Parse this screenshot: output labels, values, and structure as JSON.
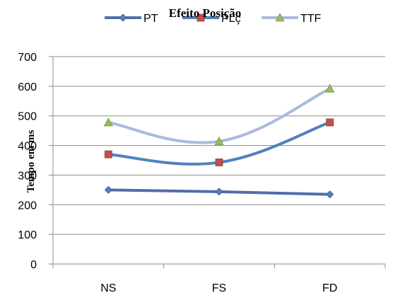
{
  "chart_data": {
    "type": "line",
    "title": "Efeito Posição",
    "ylabel": "Tempo em ms",
    "xlabel": "",
    "categories": [
      "NS",
      "FS",
      "FD"
    ],
    "ylim": [
      0,
      700
    ],
    "yticks": [
      0,
      100,
      200,
      300,
      400,
      500,
      600,
      700
    ],
    "grid": true,
    "legend_position": "top",
    "series": [
      {
        "name": "PT",
        "values": [
          250,
          244,
          235
        ],
        "color": "#4F6FA8",
        "marker": "diamond"
      },
      {
        "name": "PLç",
        "values": [
          370,
          343,
          478
        ],
        "color": "#4F81BD",
        "marker": "square"
      },
      {
        "name": "TTF",
        "values": [
          478,
          414,
          592
        ],
        "color": "#A9BBDD",
        "marker": "triangle"
      }
    ],
    "marker_colors": {
      "PT": "#4F81BD",
      "PLç": "#C0504D",
      "TTF": "#9BBB59"
    }
  }
}
